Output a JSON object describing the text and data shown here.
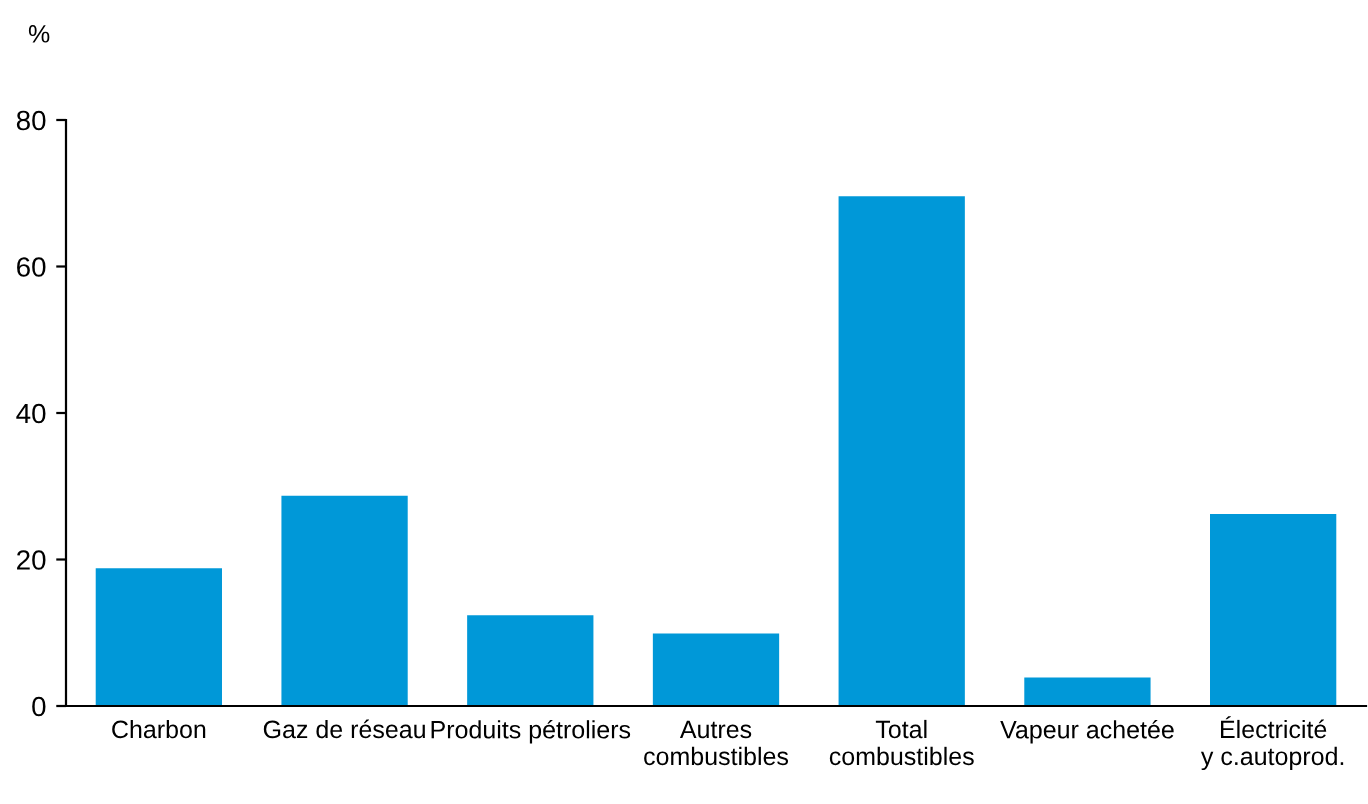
{
  "chart_data": {
    "type": "bar",
    "ylabel": "%",
    "categories": [
      "Charbon",
      "Gaz de réseau",
      "Produits pétroliers",
      "Autres\ncombustibles",
      "Total\ncombustibles",
      "Vapeur achetée",
      "Électricité\ny c.autoprod."
    ],
    "values": [
      18.8,
      28.7,
      12.4,
      9.9,
      69.6,
      3.9,
      26.2
    ],
    "color": "#0098d8",
    "ylim": [
      0,
      80
    ],
    "yticks": [
      0,
      20,
      40,
      60,
      80
    ],
    "grid": false,
    "legend": false
  }
}
